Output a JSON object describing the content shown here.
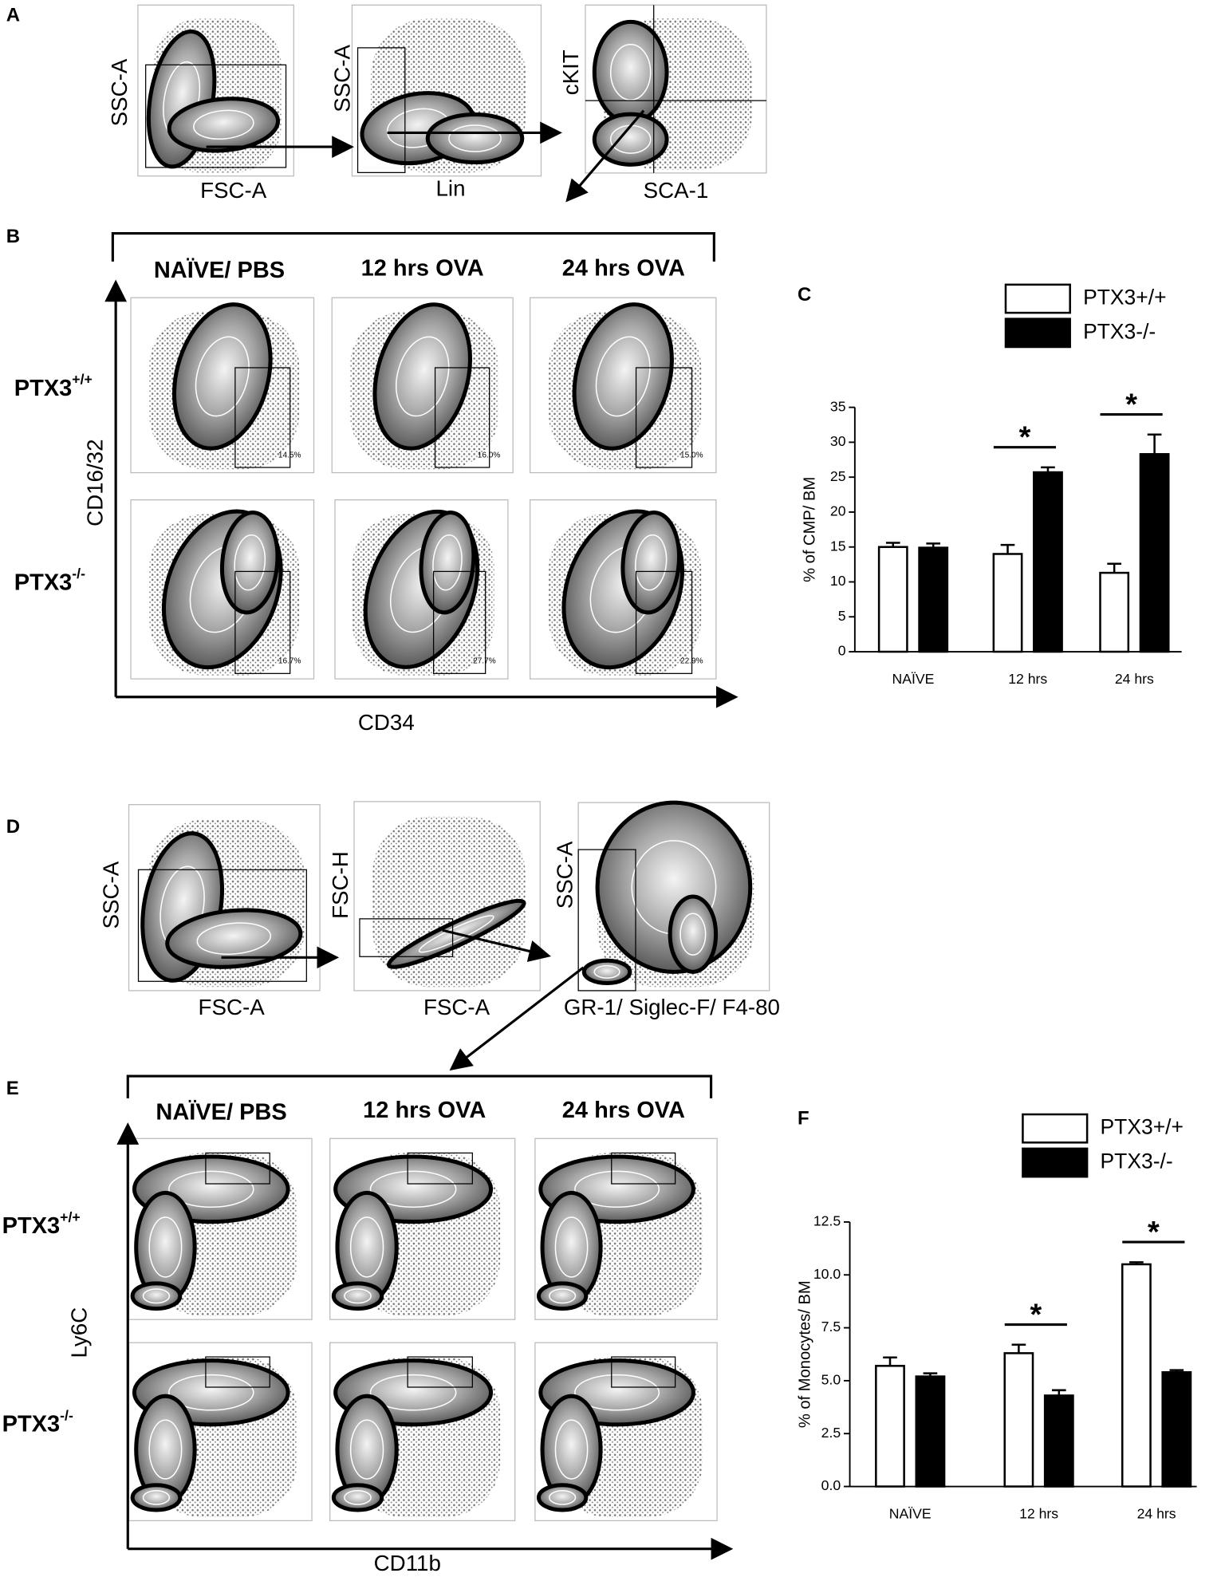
{
  "panel_labels": [
    "A",
    "B",
    "C",
    "D",
    "E",
    "F"
  ],
  "panel_a": {
    "plots": [
      {
        "y": "SSC-A",
        "x": "FSC-A"
      },
      {
        "y": "SSC-A",
        "x": "Lin"
      },
      {
        "y": "cKIT",
        "x": "SCA-1"
      }
    ]
  },
  "panel_b": {
    "columns": [
      "NAÏVE/ PBS",
      "12 hrs OVA",
      "24 hrs OVA"
    ],
    "rows": [
      {
        "base": "PTX3",
        "sup": "+/+"
      },
      {
        "base": "PTX3",
        "sup": "-/-"
      }
    ],
    "y_axis": "CD16/32",
    "x_axis": "CD34",
    "gates": [
      [
        "14.5%",
        "16.0%",
        "15.0%"
      ],
      [
        "16.7%",
        "27.7%",
        "22.9%"
      ]
    ]
  },
  "panel_d": {
    "plots": [
      {
        "y": "SSC-A",
        "x": "FSC-A"
      },
      {
        "y": "FSC-H",
        "x": "FSC-A"
      },
      {
        "y": "SSC-A",
        "x": "GR-1/ Siglec-F/ F4-80"
      }
    ]
  },
  "panel_e": {
    "columns": [
      "NAÏVE/ PBS",
      "12 hrs OVA",
      "24 hrs OVA"
    ],
    "rows": [
      {
        "base": "PTX3",
        "sup": "+/+"
      },
      {
        "base": "PTX3",
        "sup": "-/-"
      }
    ],
    "y_axis": "Ly6C",
    "x_axis": "CD11b"
  },
  "chart_data": [
    {
      "type": "bar",
      "ylabel": "% of CMP/ BM",
      "categories": [
        "NAÏVE",
        "12 hrs",
        "24 hrs"
      ],
      "series": [
        {
          "name": "PTX3+/+",
          "color": "#ffffff",
          "values": [
            15.0,
            14.0,
            11.3
          ],
          "errors": [
            0.6,
            1.3,
            1.3
          ]
        },
        {
          "name": "PTX3-/-",
          "color": "#000000",
          "values": [
            14.9,
            25.7,
            28.3
          ],
          "errors": [
            0.6,
            0.7,
            2.8
          ]
        }
      ],
      "significance": [
        null,
        "*",
        "*"
      ],
      "ylim": [
        0,
        35
      ],
      "yticks": [
        0,
        5,
        10,
        15,
        20,
        25,
        30,
        35
      ]
    },
    {
      "type": "bar",
      "ylabel": "% of Monocytes/ BM",
      "categories": [
        "NAÏVE",
        "12 hrs",
        "24 hrs"
      ],
      "series": [
        {
          "name": "PTX3+/+",
          "color": "#ffffff",
          "values": [
            5.7,
            6.3,
            10.5
          ],
          "errors": [
            0.4,
            0.4,
            0.1
          ]
        },
        {
          "name": "PTX3-/-",
          "color": "#000000",
          "values": [
            5.2,
            4.3,
            5.4
          ],
          "errors": [
            0.15,
            0.25,
            0.1
          ]
        }
      ],
      "significance": [
        null,
        "*",
        "*"
      ],
      "ylim": [
        0,
        12.5
      ],
      "yticks": [
        {
          "value": 0,
          "label": "0.0"
        },
        2.5,
        {
          "value": 5,
          "label": "5.0"
        },
        7.5,
        {
          "value": 10,
          "label": "10.0"
        },
        12.5
      ]
    }
  ]
}
